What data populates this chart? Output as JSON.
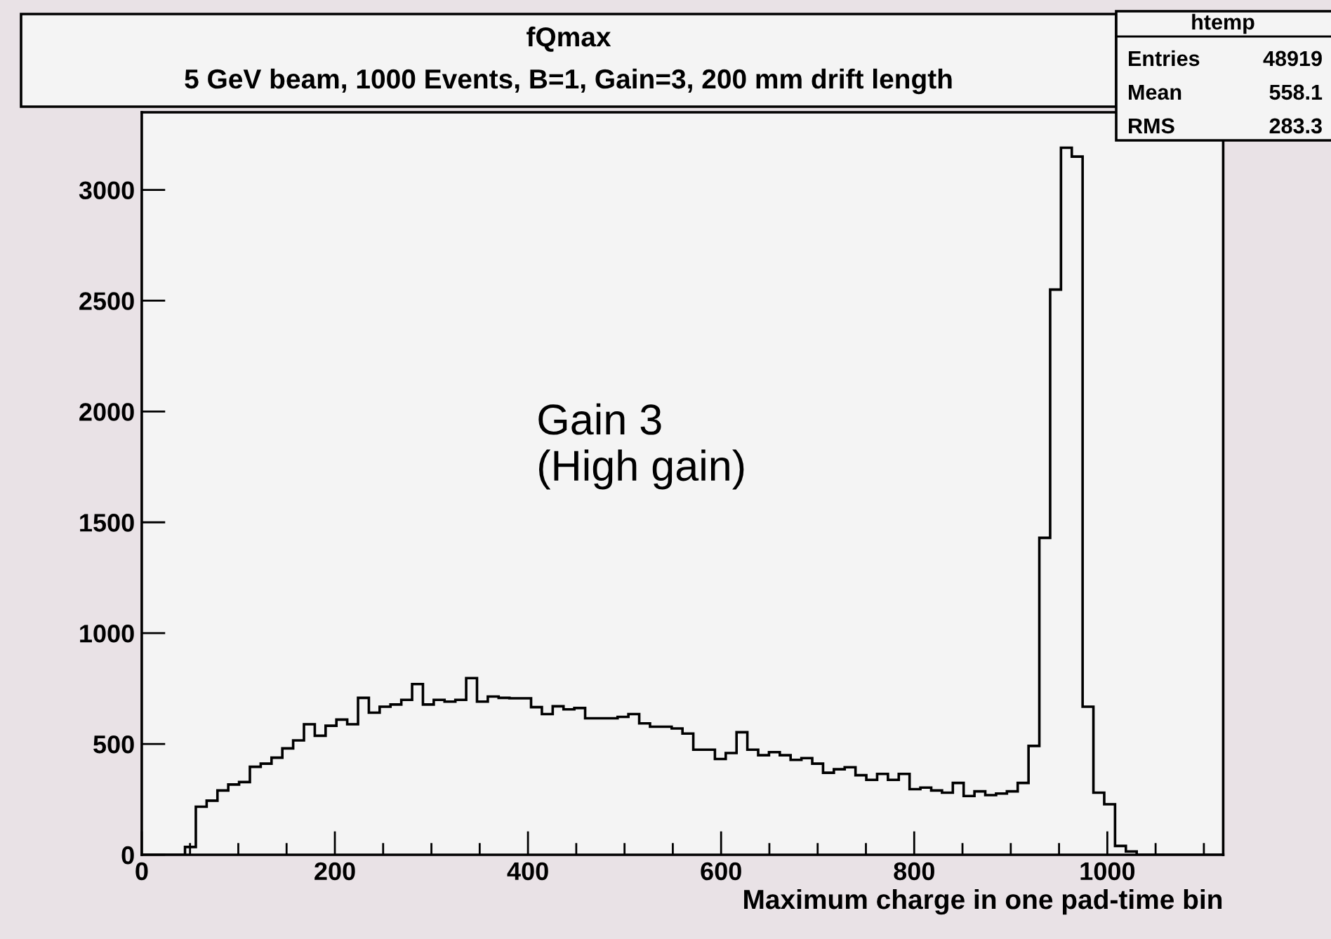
{
  "chart_data": {
    "type": "histogram",
    "title": "fQmax",
    "subtitle": "5 GeV beam, 1000 Events, B=1, Gain=3, 200 mm drift length",
    "xlabel": "Maximum charge in one pad-time bin",
    "bins": [
      0,
      11.2,
      22.4,
      33.6,
      44.8,
      56,
      67.2,
      78.4,
      89.6,
      100.8,
      112,
      123.2,
      134.4,
      145.6,
      156.8,
      168,
      179.2,
      190.4,
      201.6,
      212.8,
      224,
      235.2,
      246.4,
      257.6,
      268.8,
      280,
      291.2,
      302.4,
      313.6,
      324.8,
      336,
      347.2,
      358.4,
      369.6,
      380.8,
      392,
      403.2,
      414.4,
      425.6,
      436.8,
      448,
      459.2,
      470.4,
      481.6,
      492.8,
      504,
      515.2,
      526.4,
      537.6,
      548.8,
      560,
      571.2,
      582.4,
      593.6,
      604.8,
      616,
      627.2,
      638.4,
      649.6,
      660.8,
      672,
      683.2,
      694.4,
      705.6,
      716.8,
      728,
      739.2,
      750.4,
      761.6,
      772.8,
      784,
      795.2,
      806.4,
      817.6,
      828.8,
      840,
      851.2,
      862.4,
      873.6,
      884.8,
      896,
      907.2,
      918.4,
      929.6,
      940.8,
      952,
      963.2,
      974.4,
      985.6,
      996.8,
      1008,
      1019.2,
      1030.4,
      1041.6,
      1052.8,
      1064,
      1075.2,
      1086.4,
      1097.6,
      1108.8,
      1120
    ],
    "values": [
      0,
      0,
      0,
      0,
      35,
      217,
      244,
      290,
      317,
      328,
      397,
      411,
      438,
      480,
      516,
      589,
      537,
      582,
      610,
      589,
      708,
      641,
      668,
      678,
      699,
      770,
      678,
      699,
      691,
      699,
      797,
      691,
      714,
      708,
      706,
      706,
      666,
      635,
      670,
      656,
      662,
      616,
      616,
      616,
      622,
      635,
      593,
      578,
      578,
      570,
      547,
      474,
      474,
      432,
      459,
      553,
      474,
      449,
      463,
      449,
      428,
      436,
      411,
      370,
      386,
      395,
      359,
      338,
      365,
      338,
      365,
      296,
      303,
      290,
      280,
      324,
      265,
      286,
      269,
      276,
      286,
      324,
      491,
      1430,
      2550,
      3190,
      3150,
      668,
      280,
      228,
      40,
      15,
      0,
      0,
      0,
      0,
      0,
      0,
      0,
      0
    ],
    "color": "#000000",
    "xlim": [
      0,
      1120
    ],
    "ylim": [
      0,
      3350
    ],
    "xticks": [
      0,
      200,
      400,
      600,
      800,
      1000
    ],
    "yticks": [
      0,
      500,
      1000,
      1500,
      2000,
      2500,
      3000
    ],
    "grid": false,
    "annotations": [
      "Gain 3\n(High gain)",
      "htemp",
      "Entries",
      "48919",
      "Mean",
      "558.1",
      "RMS",
      "283.3"
    ]
  }
}
